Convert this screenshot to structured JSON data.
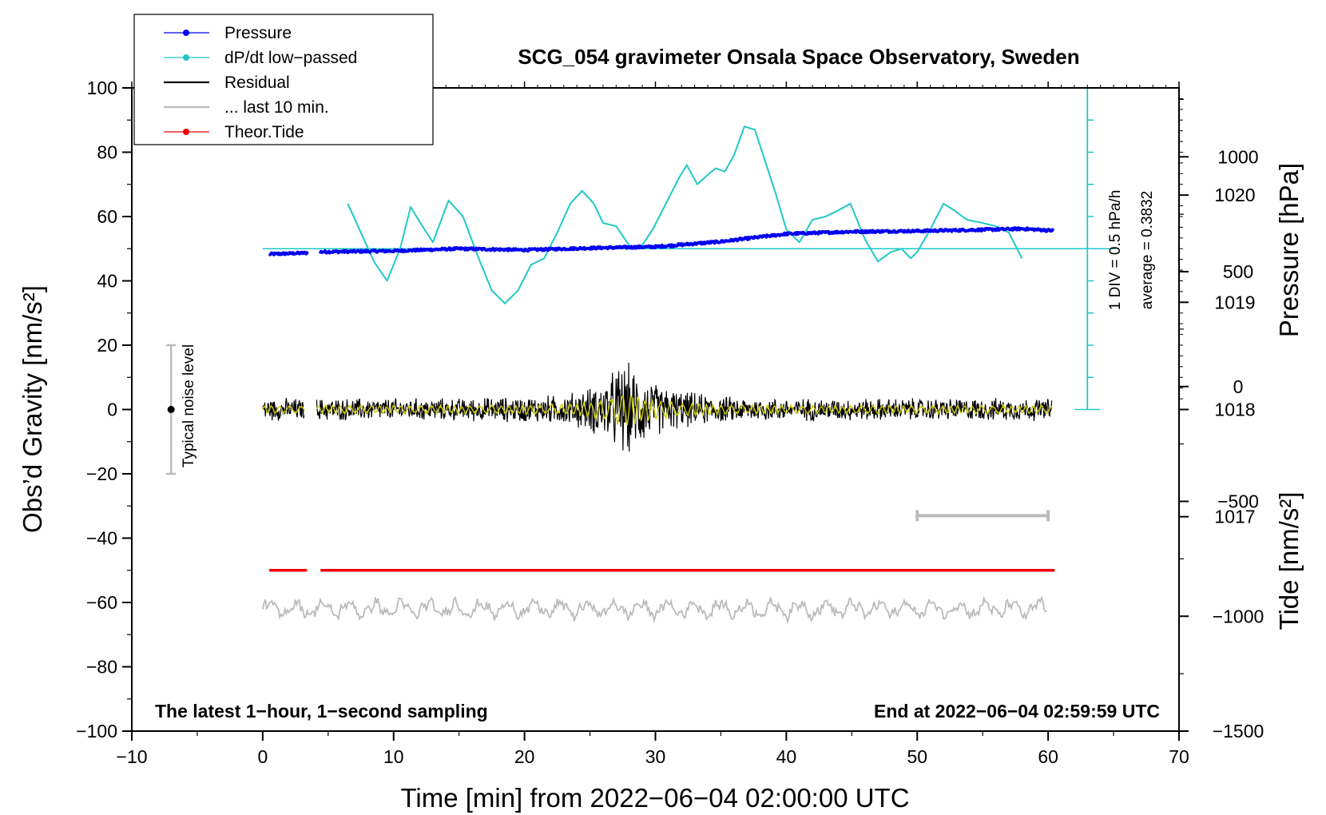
{
  "chart_data": {
    "type": "line",
    "title": "SCG_054 gravimeter Onsala Space Observatory, Sweden",
    "xlabel": "Time [min] from 2022−06−04 02:00:00 UTC",
    "ylabel_left": "Obs’d Gravity [nm/s²]",
    "ylabel_right_top": "Pressure [hPa]",
    "ylabel_right_bottom": "Tide [nm/s²]",
    "xlim": [
      -10,
      70
    ],
    "ylim": [
      -100,
      100
    ],
    "x_ticks": [
      -10,
      0,
      10,
      20,
      30,
      40,
      50,
      60,
      70
    ],
    "x_tick_labels": [
      "−10",
      "0",
      "10",
      "20",
      "30",
      "40",
      "50",
      "60",
      "70"
    ],
    "y_ticks": [
      -100,
      -80,
      -60,
      -40,
      -20,
      0,
      20,
      40,
      60,
      80,
      100
    ],
    "y_tick_labels": [
      "−100",
      "−80",
      "−60",
      "−40",
      "−20",
      "0",
      "20",
      "40",
      "60",
      "80",
      "100"
    ],
    "pressure_axis": {
      "ticks": [
        1017,
        1018,
        1019,
        1020
      ],
      "tick_labels": [
        "1017",
        "1018",
        "1019",
        "1020"
      ],
      "range": [
        1015.0,
        1021.0
      ]
    },
    "tide_axis": {
      "ticks": [
        1000,
        500,
        0,
        -500,
        -1000,
        -1500
      ],
      "tick_labels": [
        "1000",
        "500",
        "0",
        "−500",
        "−1000",
        "−1500"
      ],
      "range": [
        -1500,
        1300
      ]
    },
    "legend": [
      {
        "label": "Pressure",
        "color": "#0000ee",
        "marker": "dot"
      },
      {
        "label": "dP/dt low−passed",
        "color": "#20c8c8",
        "marker": "dot"
      },
      {
        "label": "Residual",
        "color": "#000000",
        "marker": "none"
      },
      {
        "label": "... last 10 min.",
        "color": "#bbbbbb",
        "marker": "none"
      },
      {
        "label": "Theor.Tide",
        "color": "#ee0000",
        "marker": "dot"
      }
    ],
    "series": [
      {
        "name": "Pressure",
        "color": "#0000ee",
        "gaps": [
          [
            3.5,
            4.3
          ]
        ],
        "x": [
          0.5,
          3.5,
          4.3,
          10,
          15,
          20,
          25,
          30,
          35,
          40,
          45,
          50,
          55,
          58,
          60.5
        ],
        "values": [
          48.3,
          48.7,
          49.0,
          49.3,
          50.0,
          49.6,
          50.2,
          50.6,
          52.2,
          54.6,
          55.3,
          55.5,
          55.9,
          56.2,
          55.6
        ]
      },
      {
        "name": "dP/dt low−passed",
        "color": "#20c8c8",
        "x": [
          6.5,
          7.5,
          8.5,
          9.5,
          10.5,
          11.3,
          12.2,
          13.0,
          14.2,
          15.3,
          16.5,
          17.5,
          18.5,
          19.5,
          20.5,
          21.5,
          22.5,
          23.5,
          24.4,
          25.3,
          26.0,
          27.0,
          28.0,
          28.8,
          29.8,
          30.8,
          31.8,
          32.4,
          33.2,
          34.0,
          34.6,
          35.3,
          36.0,
          36.8,
          37.6,
          38.4,
          39.2,
          40.0,
          41.0,
          42.0,
          43.0,
          44.0,
          44.9,
          46.0,
          47.0,
          48.0,
          48.8,
          49.5,
          50.0,
          51.0,
          52.0,
          52.8,
          53.8,
          55.0,
          56.0,
          57.0,
          58.0
        ],
        "values": [
          64,
          55,
          46,
          40,
          50,
          63,
          57,
          52,
          65,
          60,
          47,
          37,
          33,
          37,
          45,
          47,
          55,
          64,
          68,
          64,
          58,
          57,
          51,
          50,
          56,
          64,
          72,
          76,
          70,
          73,
          75,
          74,
          79,
          88,
          87,
          77,
          67,
          56,
          52,
          59,
          60,
          62,
          64,
          53,
          46,
          49,
          50,
          47,
          49,
          56,
          64,
          62,
          59,
          58,
          57,
          55,
          47
        ]
      },
      {
        "name": "Residual",
        "color": "#000000",
        "gaps": [
          [
            3.2,
            4.1
          ]
        ],
        "x_range": [
          0,
          60.3
        ],
        "envelope": {
          "x": [
            0,
            5,
            10,
            15,
            20,
            23,
            25,
            26.5,
            27.5,
            28.5,
            30,
            32,
            35,
            40,
            50,
            60.3
          ],
          "values": [
            3,
            3,
            3,
            3,
            3.5,
            4,
            6,
            9,
            13,
            11,
            7,
            5,
            3.5,
            3,
            3,
            3
          ]
        }
      },
      {
        "name": "... last 10 min.",
        "color": "#bbbbbb",
        "x_range": [
          0,
          60
        ],
        "center": -62,
        "amplitude": 3
      },
      {
        "name": "Theor.Tide",
        "color": "#ee0000",
        "gaps": [
          [
            3.4,
            4.4
          ]
        ],
        "x": [
          0.5,
          60.5
        ],
        "values": [
          -50,
          -50
        ]
      }
    ],
    "filtered_series": {
      "color": "#cccc00",
      "x_range": [
        0,
        60.3
      ]
    },
    "reference_bar": {
      "x": [
        50,
        60
      ],
      "y": -33
    },
    "pressure_scale": {
      "label_div": "1 DIV = 0.5 hPa/h",
      "label_average": "average = 0.3832",
      "x": 63,
      "y_range": [
        0,
        100
      ],
      "baseline_y": 50
    },
    "noise_level": {
      "x": -7,
      "y": 0,
      "range": [
        -20,
        20
      ],
      "label": "Typical noise level"
    },
    "annotation_left": "The latest 1−hour, 1−second sampling",
    "annotation_right": "End at 2022−06−04 02:59:59 UTC"
  }
}
